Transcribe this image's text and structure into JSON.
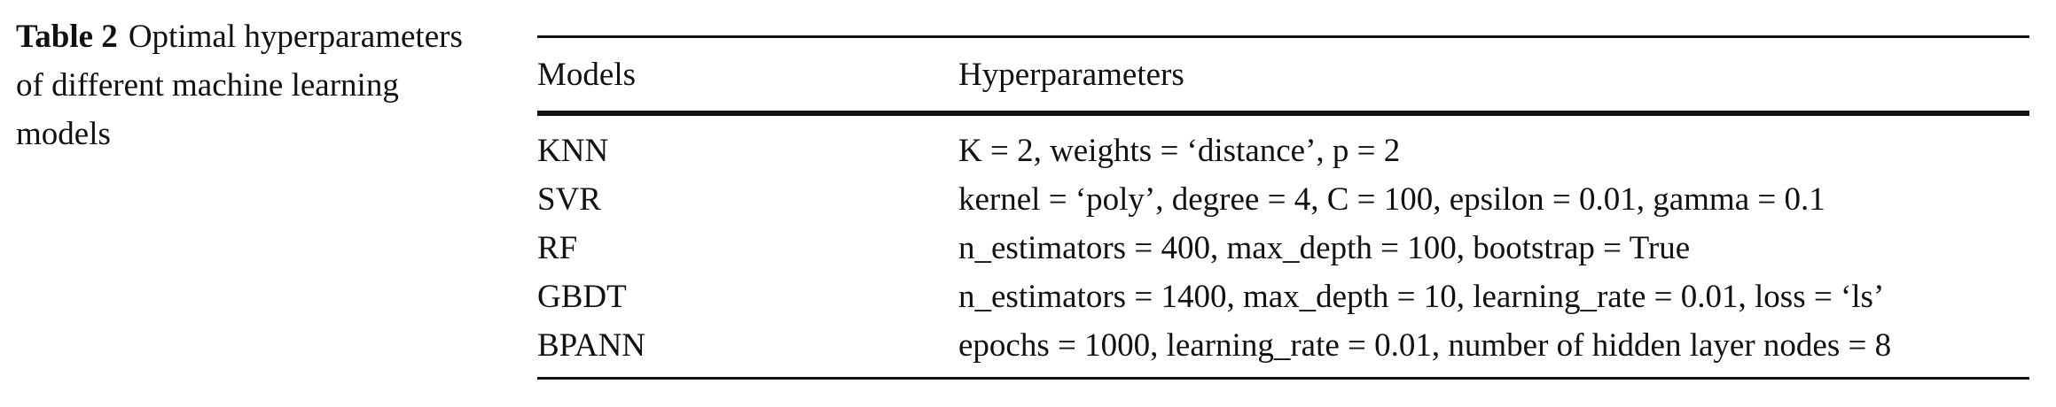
{
  "caption": {
    "label": "Table 2",
    "text": "Optimal hyperparameters of different machine learning models"
  },
  "table": {
    "headers": {
      "models": "Models",
      "hyperparameters": "Hyperparameters"
    },
    "rows": [
      {
        "model": "KNN",
        "params": "K = 2, weights = ‘distance’, p = 2"
      },
      {
        "model": "SVR",
        "params": "kernel = ‘poly’, degree = 4, C = 100, epsilon = 0.01, gamma = 0.1"
      },
      {
        "model": "RF",
        "params": "n_estimators = 400, max_depth = 100, bootstrap = True"
      },
      {
        "model": "GBDT",
        "params": "n_estimators = 1400, max_depth = 10, learning_rate = 0.01, loss = ‘ls’"
      },
      {
        "model": "BPANN",
        "params": "epochs = 1000, learning_rate = 0.01, number of hidden layer nodes = 8"
      }
    ]
  }
}
